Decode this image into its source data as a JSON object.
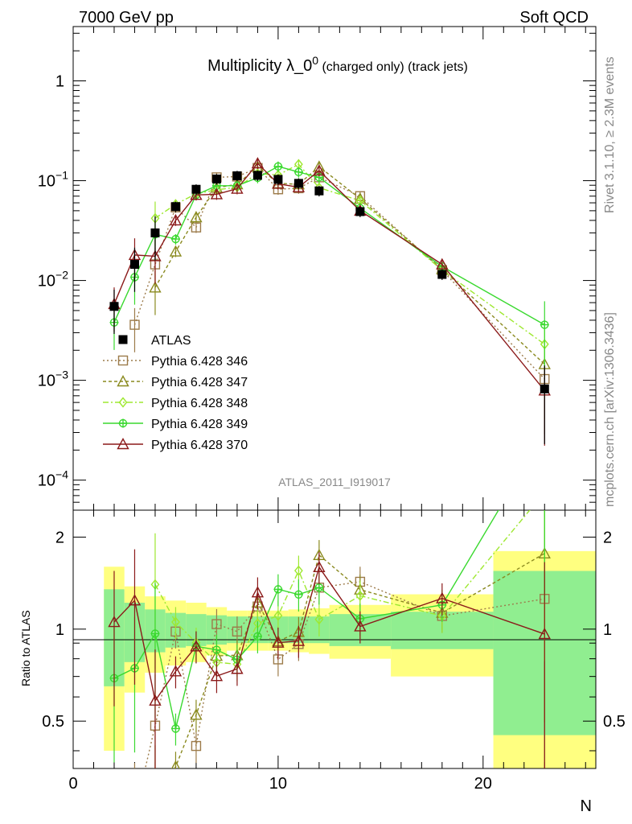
{
  "header": {
    "left": "7000 GeV pp",
    "right": "Soft QCD"
  },
  "plot_title": {
    "main": "Multiplicity λ_0",
    "sup": "0",
    "suffix": " (charged only) (track jets)"
  },
  "watermark": "ATLAS_2011_I919017",
  "side_text": {
    "rivet": "Rivet 3.1.10, ≥ 2.3M events",
    "mcplots": "mcplots.cern.ch [arXiv:1306.3436]"
  },
  "axes": {
    "xlabel": "N",
    "ratio_ylabel": "Ratio to ATLAS",
    "x_ticks": [
      "0",
      "10",
      "20"
    ],
    "main_ticks": [
      {
        "base": "10",
        "exp": "−4",
        "v": 0.0001
      },
      {
        "base": "10",
        "exp": "−3",
        "v": 0.001
      },
      {
        "base": "10",
        "exp": "−2",
        "v": 0.01
      },
      {
        "base": "10",
        "exp": "−1",
        "v": 0.1
      },
      {
        "base": "1",
        "exp": "",
        "v": 1
      }
    ],
    "ratio_ticks": [
      "0.5",
      "1",
      "2"
    ]
  },
  "chart_data": {
    "type": "scatter",
    "log_y": true,
    "xlim": [
      0,
      25.5
    ],
    "ylim": [
      5e-05,
      3.5
    ],
    "ratio_ylim": [
      0.35,
      2.45
    ],
    "x": [
      2,
      3,
      4,
      5,
      6,
      7,
      8,
      9,
      10,
      11,
      12,
      14,
      18,
      23
    ],
    "bins": [
      [
        1.5,
        2.5
      ],
      [
        2.5,
        3.5
      ],
      [
        3.5,
        4.5
      ],
      [
        4.5,
        5.5
      ],
      [
        5.5,
        6.5
      ],
      [
        6.5,
        7.5
      ],
      [
        7.5,
        8.5
      ],
      [
        8.5,
        9.5
      ],
      [
        9.5,
        10.5
      ],
      [
        10.5,
        11.5
      ],
      [
        11.5,
        12.5
      ],
      [
        12.5,
        15.5
      ],
      [
        15.5,
        20.5
      ],
      [
        20.5,
        25.5
      ]
    ],
    "band_green": [
      0.35,
      0.22,
      0.16,
      0.13,
      0.12,
      0.11,
      0.1,
      0.1,
      0.1,
      0.1,
      0.1,
      0.12,
      0.14,
      0.55
    ],
    "band_yellow": [
      0.6,
      0.38,
      0.28,
      0.24,
      0.22,
      0.18,
      0.15,
      0.15,
      0.15,
      0.16,
      0.17,
      0.2,
      0.3,
      0.8
    ],
    "series": [
      {
        "name": "ATLAS",
        "color": "#000000",
        "marker": "square-filled",
        "dash": "",
        "values": [
          0.0055,
          0.0145,
          0.03,
          0.055,
          0.082,
          0.104,
          0.112,
          0.113,
          0.103,
          0.094,
          0.079,
          0.049,
          0.0115,
          0.00082
        ]
      },
      {
        "name": "Pythia 6.428 346",
        "color": "#9c7b4a",
        "marker": "square-open",
        "dash": "2,3",
        "values": [
          null,
          0.0036,
          0.0145,
          0.054,
          0.034,
          0.108,
          0.11,
          0.134,
          0.082,
          0.084,
          0.108,
          0.07,
          0.0127,
          0.00103
        ]
      },
      {
        "name": "Pythia 6.428 347",
        "color": "#8a8a1f",
        "marker": "triangle-open",
        "dash": "4,3",
        "values": [
          null,
          null,
          0.0085,
          0.0195,
          0.043,
          0.085,
          0.092,
          0.138,
          0.094,
          0.092,
          0.138,
          0.066,
          0.013,
          0.00145
        ]
      },
      {
        "name": "Pythia 6.428 348",
        "color": "#9ee830",
        "marker": "diamond-open",
        "dash": "7,3,2,3",
        "values": [
          null,
          null,
          0.042,
          0.058,
          0.074,
          0.081,
          0.086,
          0.118,
          0.114,
          0.146,
          0.085,
          0.063,
          0.0127,
          0.0023
        ]
      },
      {
        "name": "Pythia 6.428 349",
        "color": "#3ad92f",
        "marker": "plus-circle",
        "dash": "",
        "values": [
          0.0038,
          0.0108,
          0.029,
          0.026,
          0.072,
          0.089,
          0.089,
          0.107,
          0.139,
          0.122,
          0.108,
          0.053,
          0.0138,
          0.0036
        ]
      },
      {
        "name": "Pythia 6.428 370",
        "color": "#8b1a1a",
        "marker": "triangle-open",
        "dash": "",
        "values": [
          0.0058,
          0.018,
          0.0175,
          0.04,
          0.072,
          0.073,
          0.083,
          0.149,
          0.093,
          0.086,
          0.126,
          0.05,
          0.0145,
          0.00079
        ]
      }
    ]
  }
}
